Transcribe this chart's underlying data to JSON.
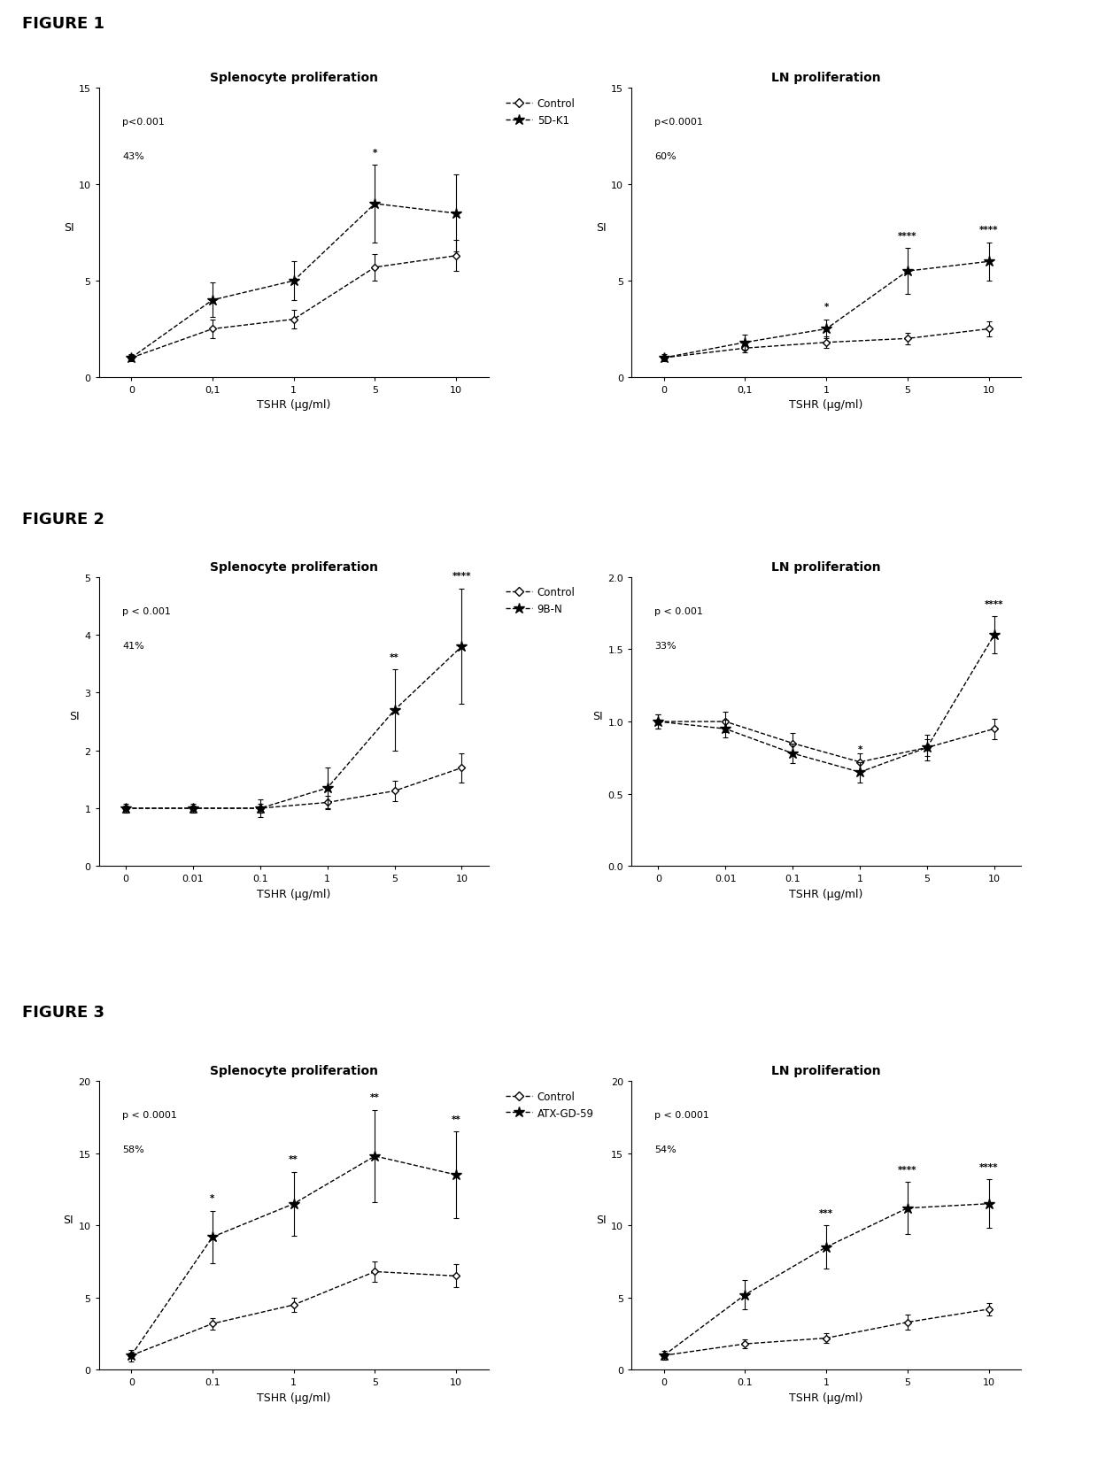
{
  "figure1": {
    "spleen": {
      "title": "Splenocyte proliferation",
      "pval": "p<0.001",
      "pct": "43%",
      "xticklabels": [
        "0",
        "0,1",
        "1",
        "5",
        "10"
      ],
      "xvals": [
        0,
        1,
        2,
        3,
        4
      ],
      "control_y": [
        1.0,
        2.5,
        3.0,
        5.7,
        6.3
      ],
      "control_err": [
        0.15,
        0.5,
        0.5,
        0.7,
        0.8
      ],
      "peptide_y": [
        1.0,
        4.0,
        5.0,
        9.0,
        8.5
      ],
      "peptide_err": [
        0.2,
        0.9,
        1.0,
        2.0,
        2.0
      ],
      "ylim": [
        0,
        15
      ],
      "yticks": [
        0,
        5,
        10,
        15
      ],
      "ylabel": "SI",
      "xlabel": "TSHR (μg/ml)",
      "sig_labels": [
        "",
        "",
        "",
        "*",
        ""
      ],
      "legend_control": "Control",
      "legend_peptide": "5D-K1"
    },
    "ln": {
      "title": "LN proliferation",
      "pval": "p<0.0001",
      "pct": "60%",
      "xticklabels": [
        "0",
        "0,1",
        "1",
        "5",
        "10"
      ],
      "xvals": [
        0,
        1,
        2,
        3,
        4
      ],
      "control_y": [
        1.0,
        1.5,
        1.8,
        2.0,
        2.5
      ],
      "control_err": [
        0.1,
        0.2,
        0.3,
        0.3,
        0.4
      ],
      "peptide_y": [
        1.0,
        1.8,
        2.5,
        5.5,
        6.0
      ],
      "peptide_err": [
        0.2,
        0.4,
        0.5,
        1.2,
        1.0
      ],
      "ylim": [
        0,
        15
      ],
      "yticks": [
        0,
        5,
        10,
        15
      ],
      "ylabel": "SI",
      "xlabel": "TSHR (μg/ml)",
      "sig_labels": [
        "",
        "",
        "*",
        "****",
        "****"
      ],
      "legend_control": "Control",
      "legend_peptide": "5D-K1"
    }
  },
  "figure2": {
    "spleen": {
      "title": "Splenocyte proliferation",
      "pval": "p < 0.001",
      "pct": "41%",
      "xticklabels": [
        "0",
        "0.01",
        "0.1",
        "1",
        "5",
        "10"
      ],
      "xvals": [
        0,
        1,
        2,
        3,
        4,
        5
      ],
      "control_y": [
        1.0,
        1.0,
        1.0,
        1.1,
        1.3,
        1.7
      ],
      "control_err": [
        0.05,
        0.05,
        0.08,
        0.12,
        0.18,
        0.25
      ],
      "peptide_y": [
        1.0,
        1.0,
        1.0,
        1.35,
        2.7,
        3.8
      ],
      "peptide_err": [
        0.08,
        0.08,
        0.15,
        0.35,
        0.7,
        1.0
      ],
      "ylim": [
        0,
        5
      ],
      "yticks": [
        0,
        1,
        2,
        3,
        4,
        5
      ],
      "ylabel": "SI",
      "xlabel": "TSHR (μg/ml)",
      "sig_labels": [
        "",
        "",
        "",
        "",
        "**",
        "****"
      ],
      "legend_control": "Control",
      "legend_peptide": "9B-N"
    },
    "ln": {
      "title": "LN proliferation",
      "pval": "p < 0.001",
      "pct": "33%",
      "xticklabels": [
        "0",
        "0.01",
        "0.1",
        "1",
        "5",
        "10"
      ],
      "xvals": [
        0,
        1,
        2,
        3,
        4,
        5
      ],
      "control_y": [
        1.0,
        1.0,
        0.85,
        0.72,
        0.82,
        0.95
      ],
      "control_err": [
        0.05,
        0.07,
        0.07,
        0.06,
        0.06,
        0.07
      ],
      "peptide_y": [
        1.0,
        0.95,
        0.78,
        0.65,
        0.82,
        1.6
      ],
      "peptide_err": [
        0.05,
        0.06,
        0.07,
        0.07,
        0.09,
        0.13
      ],
      "ylim": [
        0.0,
        2.0
      ],
      "yticks": [
        0.0,
        0.5,
        1.0,
        1.5,
        2.0
      ],
      "ylabel": "SI",
      "xlabel": "TSHR (μg/ml)",
      "sig_labels": [
        "",
        "",
        "",
        "*",
        "",
        "****"
      ],
      "legend_control": "Control",
      "legend_peptide": "9B-N"
    }
  },
  "figure3": {
    "spleen": {
      "title": "Splenocyte proliferation",
      "pval": "p < 0.0001",
      "pct": "58%",
      "xticklabels": [
        "0",
        "0.1",
        "1",
        "5",
        "10"
      ],
      "xvals": [
        0,
        1,
        2,
        3,
        4
      ],
      "control_y": [
        1.0,
        3.2,
        4.5,
        6.8,
        6.5
      ],
      "control_err": [
        0.2,
        0.4,
        0.5,
        0.7,
        0.8
      ],
      "peptide_y": [
        1.0,
        9.2,
        11.5,
        14.8,
        13.5
      ],
      "peptide_err": [
        0.4,
        1.8,
        2.2,
        3.2,
        3.0
      ],
      "ylim": [
        0,
        20
      ],
      "yticks": [
        0,
        5,
        10,
        15,
        20
      ],
      "ylabel": "SI",
      "xlabel": "TSHR (μg/ml)",
      "sig_labels": [
        "",
        "*",
        "**",
        "**",
        "**"
      ],
      "legend_control": "Control",
      "legend_peptide": "ATX-GD-59"
    },
    "ln": {
      "title": "LN proliferation",
      "pval": "p < 0.0001",
      "pct": "54%",
      "xticklabels": [
        "0",
        "0.1",
        "1",
        "5",
        "10"
      ],
      "xvals": [
        0,
        1,
        2,
        3,
        4
      ],
      "control_y": [
        1.0,
        1.8,
        2.2,
        3.3,
        4.2
      ],
      "control_err": [
        0.15,
        0.3,
        0.35,
        0.5,
        0.45
      ],
      "peptide_y": [
        1.0,
        5.2,
        8.5,
        11.2,
        11.5
      ],
      "peptide_err": [
        0.3,
        1.0,
        1.5,
        1.8,
        1.7
      ],
      "ylim": [
        0,
        20
      ],
      "yticks": [
        0,
        5,
        10,
        15,
        20
      ],
      "ylabel": "SI",
      "xlabel": "TSHR (μg/ml)",
      "sig_labels": [
        "",
        "",
        "***",
        "****",
        "****"
      ],
      "legend_control": "Control",
      "legend_peptide": "ATX-GD-59"
    }
  }
}
